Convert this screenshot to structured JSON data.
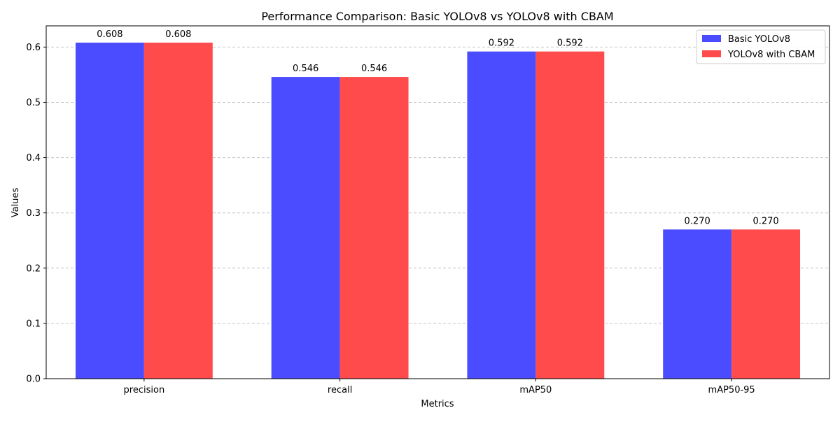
{
  "chart_data": {
    "type": "bar",
    "title": "Performance Comparison: Basic YOLOv8 vs YOLOv8 with CBAM",
    "xlabel": "Metrics",
    "ylabel": "Values",
    "categories": [
      "precision",
      "recall",
      "mAP50",
      "mAP50-95"
    ],
    "series": [
      {
        "name": "Basic YOLOv8",
        "color": "#4b4bff",
        "values": [
          0.608,
          0.546,
          0.592,
          0.27
        ],
        "labels": [
          "0.608",
          "0.546",
          "0.592",
          "0.270"
        ]
      },
      {
        "name": "YOLOv8 with CBAM",
        "color": "#ff4b4b",
        "values": [
          0.608,
          0.546,
          0.592,
          0.27
        ],
        "labels": [
          "0.608",
          "0.546",
          "0.592",
          "0.270"
        ]
      }
    ],
    "ylim": [
      0,
      0.6384
    ],
    "yticks": [
      0.0,
      0.1,
      0.2,
      0.3,
      0.4,
      0.5,
      0.6
    ],
    "ytick_labels": [
      "0.0",
      "0.1",
      "0.2",
      "0.3",
      "0.4",
      "0.5",
      "0.6"
    ],
    "grid": "y-dashed",
    "legend_position": "top-right"
  }
}
